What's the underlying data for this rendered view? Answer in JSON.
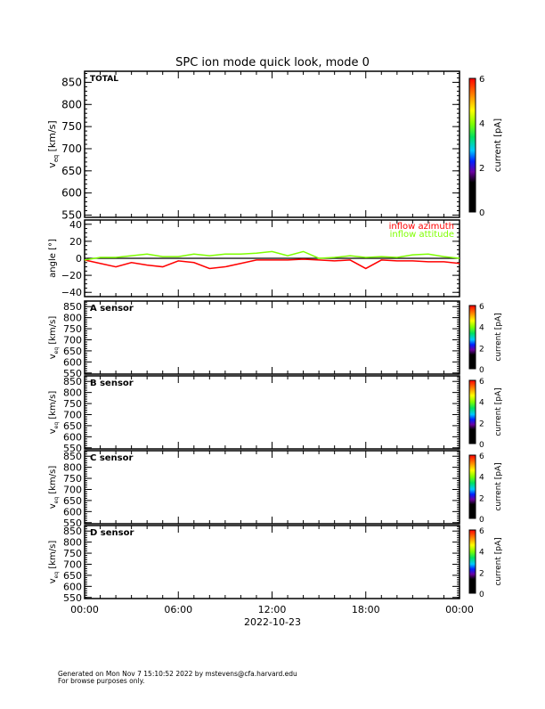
{
  "chart_data": {
    "type": "line",
    "title": "SPC ion mode quick look, mode 0",
    "xlabel": "2022-10-23",
    "x_ticks": [
      "00:00",
      "06:00",
      "12:00",
      "18:00",
      "00:00"
    ],
    "xlim_hours": [
      0,
      24
    ],
    "spectrogram_panels": [
      {
        "label": "TOTAL",
        "ylabel": "v_eq [km/s]",
        "ylim": [
          545,
          875
        ],
        "y_ticks": [
          "850",
          "800",
          "750",
          "700",
          "650",
          "600",
          "550"
        ],
        "colorbar": {
          "label": "current [pA]",
          "ticks": [
            "0",
            "2",
            "4",
            "6"
          ],
          "range": [
            0,
            6
          ]
        }
      },
      {
        "label": "A sensor",
        "ylabel": "v_eq [km/s]",
        "ylim": [
          545,
          875
        ],
        "y_ticks": [
          "850",
          "800",
          "750",
          "700",
          "650",
          "600",
          "550"
        ],
        "colorbar": {
          "label": "current [pA]",
          "ticks": [
            "0",
            "2",
            "4",
            "6"
          ],
          "range": [
            0,
            6
          ]
        }
      },
      {
        "label": "B sensor",
        "ylabel": "v_eq [km/s]",
        "ylim": [
          545,
          875
        ],
        "y_ticks": [
          "850",
          "800",
          "750",
          "700",
          "650",
          "600",
          "550"
        ],
        "colorbar": {
          "label": "current [pA]",
          "ticks": [
            "0",
            "2",
            "4",
            "6"
          ],
          "range": [
            0,
            6
          ]
        }
      },
      {
        "label": "C sensor",
        "ylabel": "v_eq [km/s]",
        "ylim": [
          545,
          875
        ],
        "y_ticks": [
          "850",
          "800",
          "750",
          "700",
          "650",
          "600",
          "550"
        ],
        "colorbar": {
          "label": "current [pA]",
          "ticks": [
            "0",
            "2",
            "4",
            "6"
          ],
          "range": [
            0,
            6
          ]
        }
      },
      {
        "label": "D sensor",
        "ylabel": "v_eq [km/s]",
        "ylim": [
          545,
          875
        ],
        "y_ticks": [
          "850",
          "800",
          "750",
          "700",
          "650",
          "600",
          "550"
        ],
        "colorbar": {
          "label": "current [pA]",
          "ticks": [
            "0",
            "2",
            "4",
            "6"
          ],
          "range": [
            0,
            6
          ]
        }
      }
    ],
    "angle_panel": {
      "ylabel": "angle [°]",
      "ylim": [
        -45,
        45
      ],
      "y_ticks": [
        "40",
        "20",
        "0",
        "−20",
        "−40"
      ],
      "x": [
        0,
        1,
        2,
        3,
        4,
        5,
        6,
        7,
        8,
        9,
        10,
        11,
        12,
        13,
        14,
        15,
        16,
        17,
        18,
        19,
        20,
        21,
        22,
        23,
        24
      ],
      "series": [
        {
          "name": "inflow azimuth",
          "color": "#ff0000",
          "values": [
            -2,
            -6,
            -10,
            -5,
            -8,
            -10,
            -3,
            -5,
            -12,
            -10,
            -6,
            -2,
            -2,
            -2,
            -1,
            -2,
            -3,
            -2,
            -12,
            -2,
            -3,
            -3,
            -4,
            -4,
            -6
          ]
        },
        {
          "name": "inflow attitude",
          "color": "#7fff00",
          "values": [
            -2,
            1,
            1,
            3,
            5,
            2,
            2,
            5,
            3,
            5,
            5,
            6,
            8,
            3,
            8,
            0,
            1,
            3,
            1,
            2,
            1,
            4,
            5,
            2,
            0
          ]
        }
      ]
    }
  },
  "footer": {
    "line1": "Generated on Mon Nov  7 15:10:52 2022 by mstevens@cfa.harvard.edu",
    "line2": "For browse purposes only."
  }
}
